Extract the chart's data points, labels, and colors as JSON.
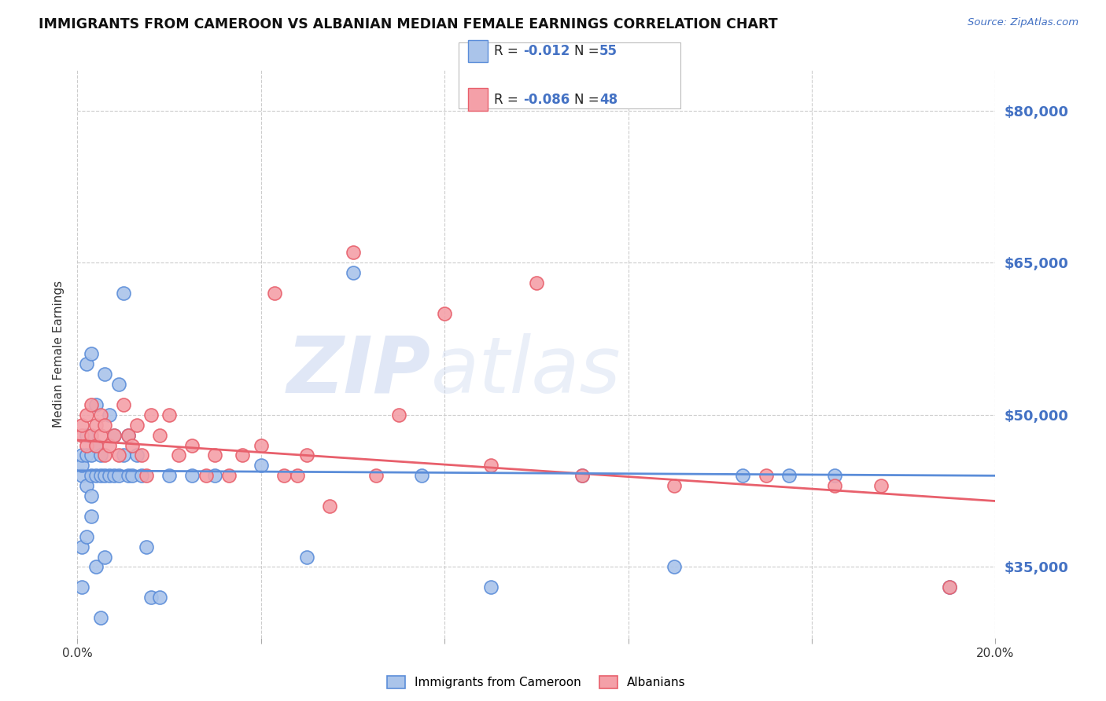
{
  "title": "IMMIGRANTS FROM CAMEROON VS ALBANIAN MEDIAN FEMALE EARNINGS CORRELATION CHART",
  "source": "Source: ZipAtlas.com",
  "ylabel": "Median Female Earnings",
  "xlim": [
    0.0,
    0.2
  ],
  "ylim": [
    28000,
    84000
  ],
  "yticks": [
    35000,
    50000,
    65000,
    80000
  ],
  "ytick_labels": [
    "$35,000",
    "$50,000",
    "$65,000",
    "$80,000"
  ],
  "xticks": [
    0.0,
    0.04,
    0.08,
    0.12,
    0.16,
    0.2
  ],
  "color_blue": "#aac4ea",
  "color_pink": "#f4a0a8",
  "color_blue_dark": "#5b8dd9",
  "color_pink_dark": "#e8606c",
  "color_text_blue": "#4472c4",
  "color_red_text": "#e03060",
  "color_grid": "#cccccc",
  "cameroon_x": [
    0.001,
    0.001,
    0.001,
    0.001,
    0.001,
    0.002,
    0.002,
    0.002,
    0.002,
    0.002,
    0.003,
    0.003,
    0.003,
    0.003,
    0.003,
    0.004,
    0.004,
    0.004,
    0.004,
    0.005,
    0.005,
    0.005,
    0.006,
    0.006,
    0.006,
    0.007,
    0.007,
    0.008,
    0.008,
    0.009,
    0.009,
    0.01,
    0.01,
    0.011,
    0.011,
    0.012,
    0.013,
    0.014,
    0.015,
    0.016,
    0.018,
    0.02,
    0.025,
    0.03,
    0.04,
    0.05,
    0.06,
    0.075,
    0.09,
    0.11,
    0.13,
    0.145,
    0.155,
    0.165,
    0.19
  ],
  "cameroon_y": [
    33000,
    37000,
    44000,
    45000,
    46000,
    38000,
    43000,
    46000,
    48000,
    55000,
    40000,
    42000,
    44000,
    46000,
    56000,
    35000,
    44000,
    47000,
    51000,
    30000,
    44000,
    46000,
    36000,
    44000,
    54000,
    44000,
    50000,
    44000,
    48000,
    44000,
    53000,
    46000,
    62000,
    44000,
    48000,
    44000,
    46000,
    44000,
    37000,
    32000,
    32000,
    44000,
    44000,
    44000,
    45000,
    36000,
    64000,
    44000,
    33000,
    44000,
    35000,
    44000,
    44000,
    44000,
    33000
  ],
  "albanian_x": [
    0.001,
    0.001,
    0.002,
    0.002,
    0.003,
    0.003,
    0.004,
    0.004,
    0.005,
    0.005,
    0.006,
    0.006,
    0.007,
    0.008,
    0.009,
    0.01,
    0.011,
    0.012,
    0.013,
    0.014,
    0.015,
    0.016,
    0.018,
    0.02,
    0.022,
    0.025,
    0.028,
    0.03,
    0.033,
    0.036,
    0.04,
    0.043,
    0.045,
    0.048,
    0.05,
    0.055,
    0.06,
    0.065,
    0.07,
    0.08,
    0.09,
    0.1,
    0.11,
    0.13,
    0.15,
    0.165,
    0.175,
    0.19
  ],
  "albanian_y": [
    48000,
    49000,
    47000,
    50000,
    48000,
    51000,
    47000,
    49000,
    48000,
    50000,
    46000,
    49000,
    47000,
    48000,
    46000,
    51000,
    48000,
    47000,
    49000,
    46000,
    44000,
    50000,
    48000,
    50000,
    46000,
    47000,
    44000,
    46000,
    44000,
    46000,
    47000,
    62000,
    44000,
    44000,
    46000,
    41000,
    66000,
    44000,
    50000,
    60000,
    45000,
    63000,
    44000,
    43000,
    44000,
    43000,
    43000,
    33000
  ],
  "trend_cam_x0": 0.0,
  "trend_cam_x1": 0.2,
  "trend_cam_y0": 44500,
  "trend_cam_y1": 44000,
  "trend_alb_x0": 0.0,
  "trend_alb_x1": 0.2,
  "trend_alb_y0": 47500,
  "trend_alb_y1": 41500
}
